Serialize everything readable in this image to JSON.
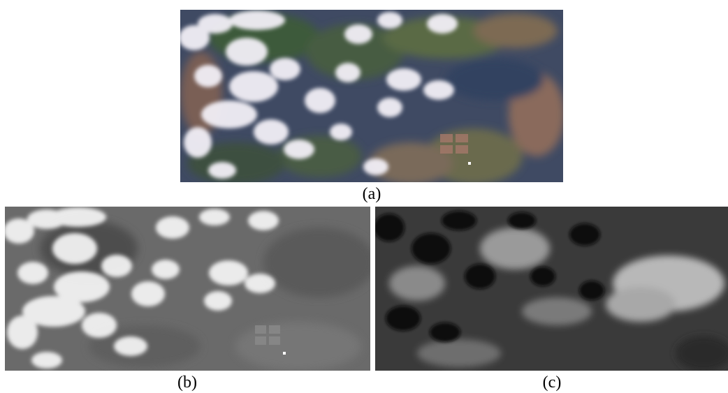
{
  "panels": [
    {
      "id": "a",
      "caption": "(a)",
      "kind": "satellite-rgb"
    },
    {
      "id": "b",
      "caption": "(b)",
      "kind": "satellite-grayscale"
    },
    {
      "id": "c",
      "caption": "(c)",
      "kind": "satellite-index-grayscale"
    }
  ],
  "colors": {
    "rgb_ground": "#3f4a63",
    "rgb_forest": "#3c5a3a",
    "rgb_field": "#8a6a5c",
    "rgb_cloud": "#f2eff6",
    "b_ground": "#6a6a6a",
    "b_cloud": "#f2f2f2",
    "c_ground": "#3a3a3a",
    "c_dark": "#0c0c0c",
    "c_light": "#b8b8b8"
  }
}
